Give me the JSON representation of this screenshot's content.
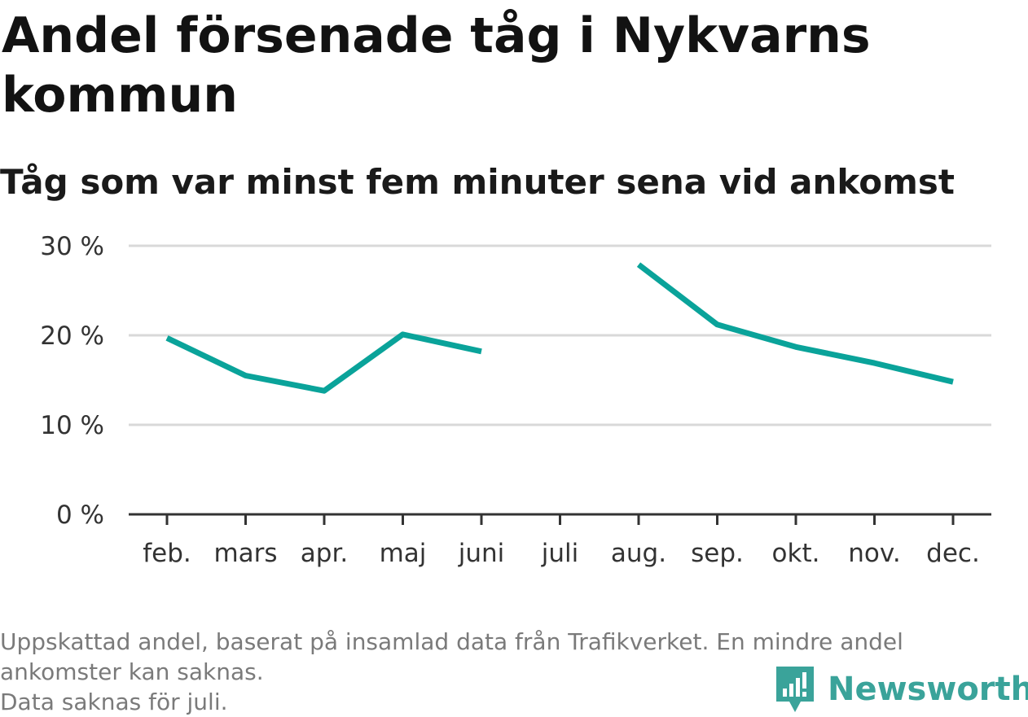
{
  "title": "Andel försenade tåg i Nykvarns kommun",
  "subtitle": "Tåg som var minst fem minuter sena vid ankomst",
  "notes": [
    "Uppskattad andel, baserat på insamlad data från Trafikverket. En mindre andel",
    "ankomster kan saknas.",
    "Data saknas för juli."
  ],
  "brand": {
    "name": "Newsworthy"
  },
  "colors": {
    "line": "#0aa39a",
    "grid": "#d9d9d9",
    "axis": "#333333",
    "brand": "#3aa39a"
  },
  "chart_data": {
    "type": "line",
    "title": "Andel försenade tåg i Nykvarns kommun",
    "subtitle": "Tåg som var minst fem minuter sena vid ankomst",
    "categories": [
      "feb.",
      "mars",
      "apr.",
      "maj",
      "juni",
      "juli",
      "aug.",
      "sep.",
      "okt.",
      "nov.",
      "dec."
    ],
    "series": [
      {
        "values": [
          19.7,
          15.5,
          13.8,
          20.1,
          18.2,
          null,
          27.9,
          21.2,
          18.7,
          16.9,
          14.8
        ]
      }
    ],
    "yticks": [
      0,
      10,
      20,
      30
    ],
    "ytick_labels": [
      "0 %",
      "10 %",
      "20 %",
      "30 %"
    ],
    "ylim": [
      0,
      30
    ],
    "grid": true,
    "legend": "none"
  }
}
